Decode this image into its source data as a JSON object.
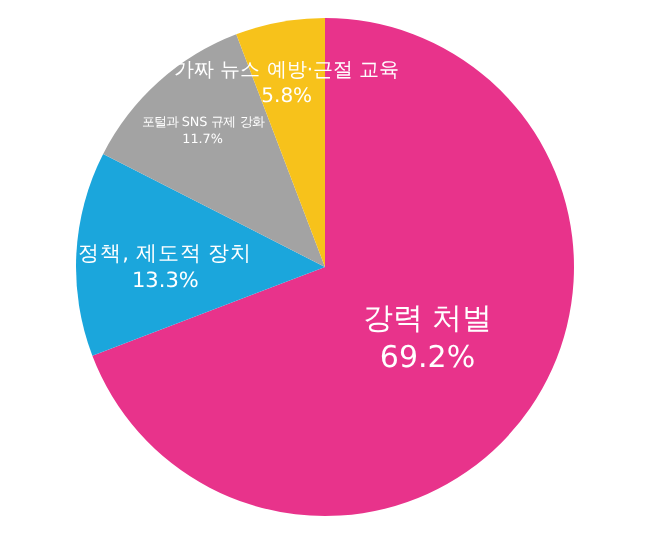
{
  "chart_data": {
    "type": "pie",
    "categories": [
      "강력 처벌",
      "정책, 제도적 장치",
      "포털과 SNS 규제 강화",
      "가짜 뉴스 예방·근절 교육"
    ],
    "values": [
      69.2,
      13.3,
      11.7,
      5.8
    ],
    "value_labels": [
      "69.2%",
      "13.3%",
      "11.7%",
      "5.8%"
    ],
    "colors": [
      "#e8338b",
      "#1ba6dc",
      "#a3a3a3",
      "#f7c21b"
    ],
    "legend": false
  }
}
